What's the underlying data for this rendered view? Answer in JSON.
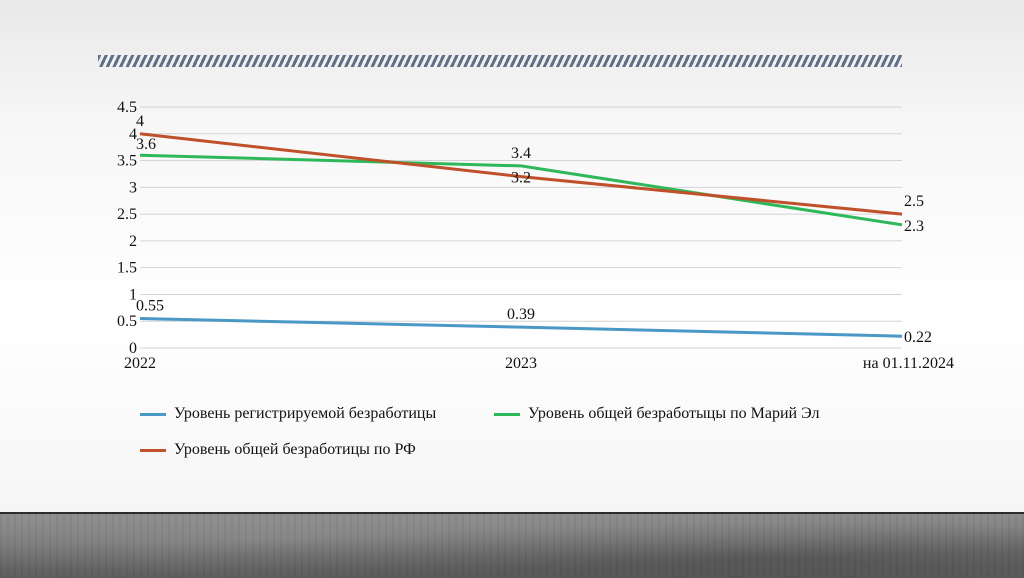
{
  "chart_data": {
    "type": "line",
    "categories": [
      "2022",
      "2023",
      "на 01.11.2024"
    ],
    "series": [
      {
        "name": "Уровень регистрируемой безработицы",
        "values": [
          0.55,
          0.39,
          0.22
        ],
        "color": "#4a98c6"
      },
      {
        "name": "Уровень общей безработыцы по Марий Эл",
        "values": [
          3.6,
          3.4,
          2.3
        ],
        "color": "#2fb85a"
      },
      {
        "name": "Уровень общей безработицы по РФ",
        "values": [
          4,
          3.2,
          2.5
        ],
        "color": "#c0502a"
      }
    ],
    "yticks": [
      "0",
      "0.5",
      "1",
      "1.5",
      "2",
      "2.5",
      "3",
      "3.5",
      "4",
      "4.5"
    ],
    "ylim": [
      0,
      4.5
    ],
    "grid": true,
    "legend_position": "bottom"
  },
  "data_labels": {
    "s0": [
      "0.55",
      "0.39",
      "0.22"
    ],
    "s1": [
      "3.6",
      "3.4",
      "2.3"
    ],
    "s2": [
      "4",
      "3.2",
      "2.5"
    ]
  }
}
